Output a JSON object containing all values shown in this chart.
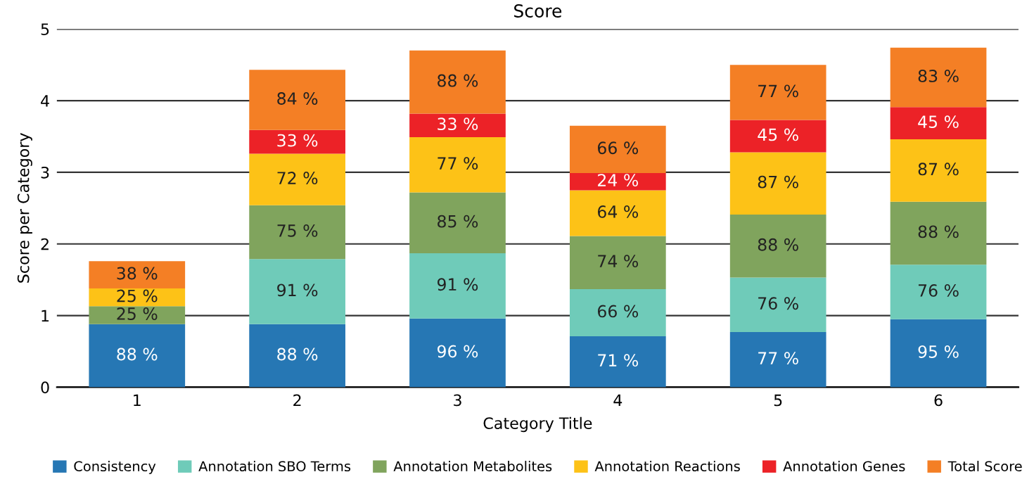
{
  "chart_data": {
    "type": "bar",
    "title": "Score",
    "xlabel": "Category Title",
    "ylabel": "Score per Category",
    "categories": [
      "1",
      "2",
      "3",
      "4",
      "5",
      "6"
    ],
    "stacked": true,
    "ylim": [
      0,
      5
    ],
    "yticks": [
      0,
      1,
      2,
      3,
      4,
      5
    ],
    "grid": "y",
    "legend": "bottom",
    "series": [
      {
        "name": "Consistency",
        "color": "#2677b4",
        "values": [
          0.88,
          0.88,
          0.96,
          0.71,
          0.77,
          0.95
        ],
        "value_labels": [
          "88 %",
          "88 %",
          "96 %",
          "71 %",
          "77 %",
          "95 %"
        ]
      },
      {
        "name": "Annotation SBO Terms",
        "color": "#6fcbb9",
        "values": [
          0,
          0.91,
          0.91,
          0.66,
          0.76,
          0.76
        ],
        "value_labels": [
          null,
          "91 %",
          "91 %",
          "66 %",
          "76 %",
          "76 %"
        ]
      },
      {
        "name": "Annotation Metabolites",
        "color": "#80a45d",
        "values": [
          0.25,
          0.75,
          0.85,
          0.74,
          0.88,
          0.88
        ],
        "value_labels": [
          "25 %",
          "75 %",
          "85 %",
          "74 %",
          "88 %",
          "88 %"
        ]
      },
      {
        "name": "Annotation Reactions",
        "color": "#fdc217",
        "values": [
          0.25,
          0.72,
          0.77,
          0.64,
          0.87,
          0.87
        ],
        "value_labels": [
          "25 %",
          "72 %",
          "77 %",
          "64 %",
          "87 %",
          "87 %"
        ]
      },
      {
        "name": "Annotation Genes",
        "color": "#ec2227",
        "values": [
          0,
          0.33,
          0.33,
          0.24,
          0.45,
          0.45
        ],
        "value_labels": [
          null,
          "33 %",
          "33 %",
          "24 %",
          "45 %",
          "45 %"
        ]
      },
      {
        "name": "Total Score",
        "color": "#f47f25",
        "values": [
          0.38,
          0.84,
          0.88,
          0.66,
          0.77,
          0.83
        ],
        "value_labels": [
          "38 %",
          "84 %",
          "88 %",
          "66 %",
          "77 %",
          "83 %"
        ]
      }
    ]
  }
}
